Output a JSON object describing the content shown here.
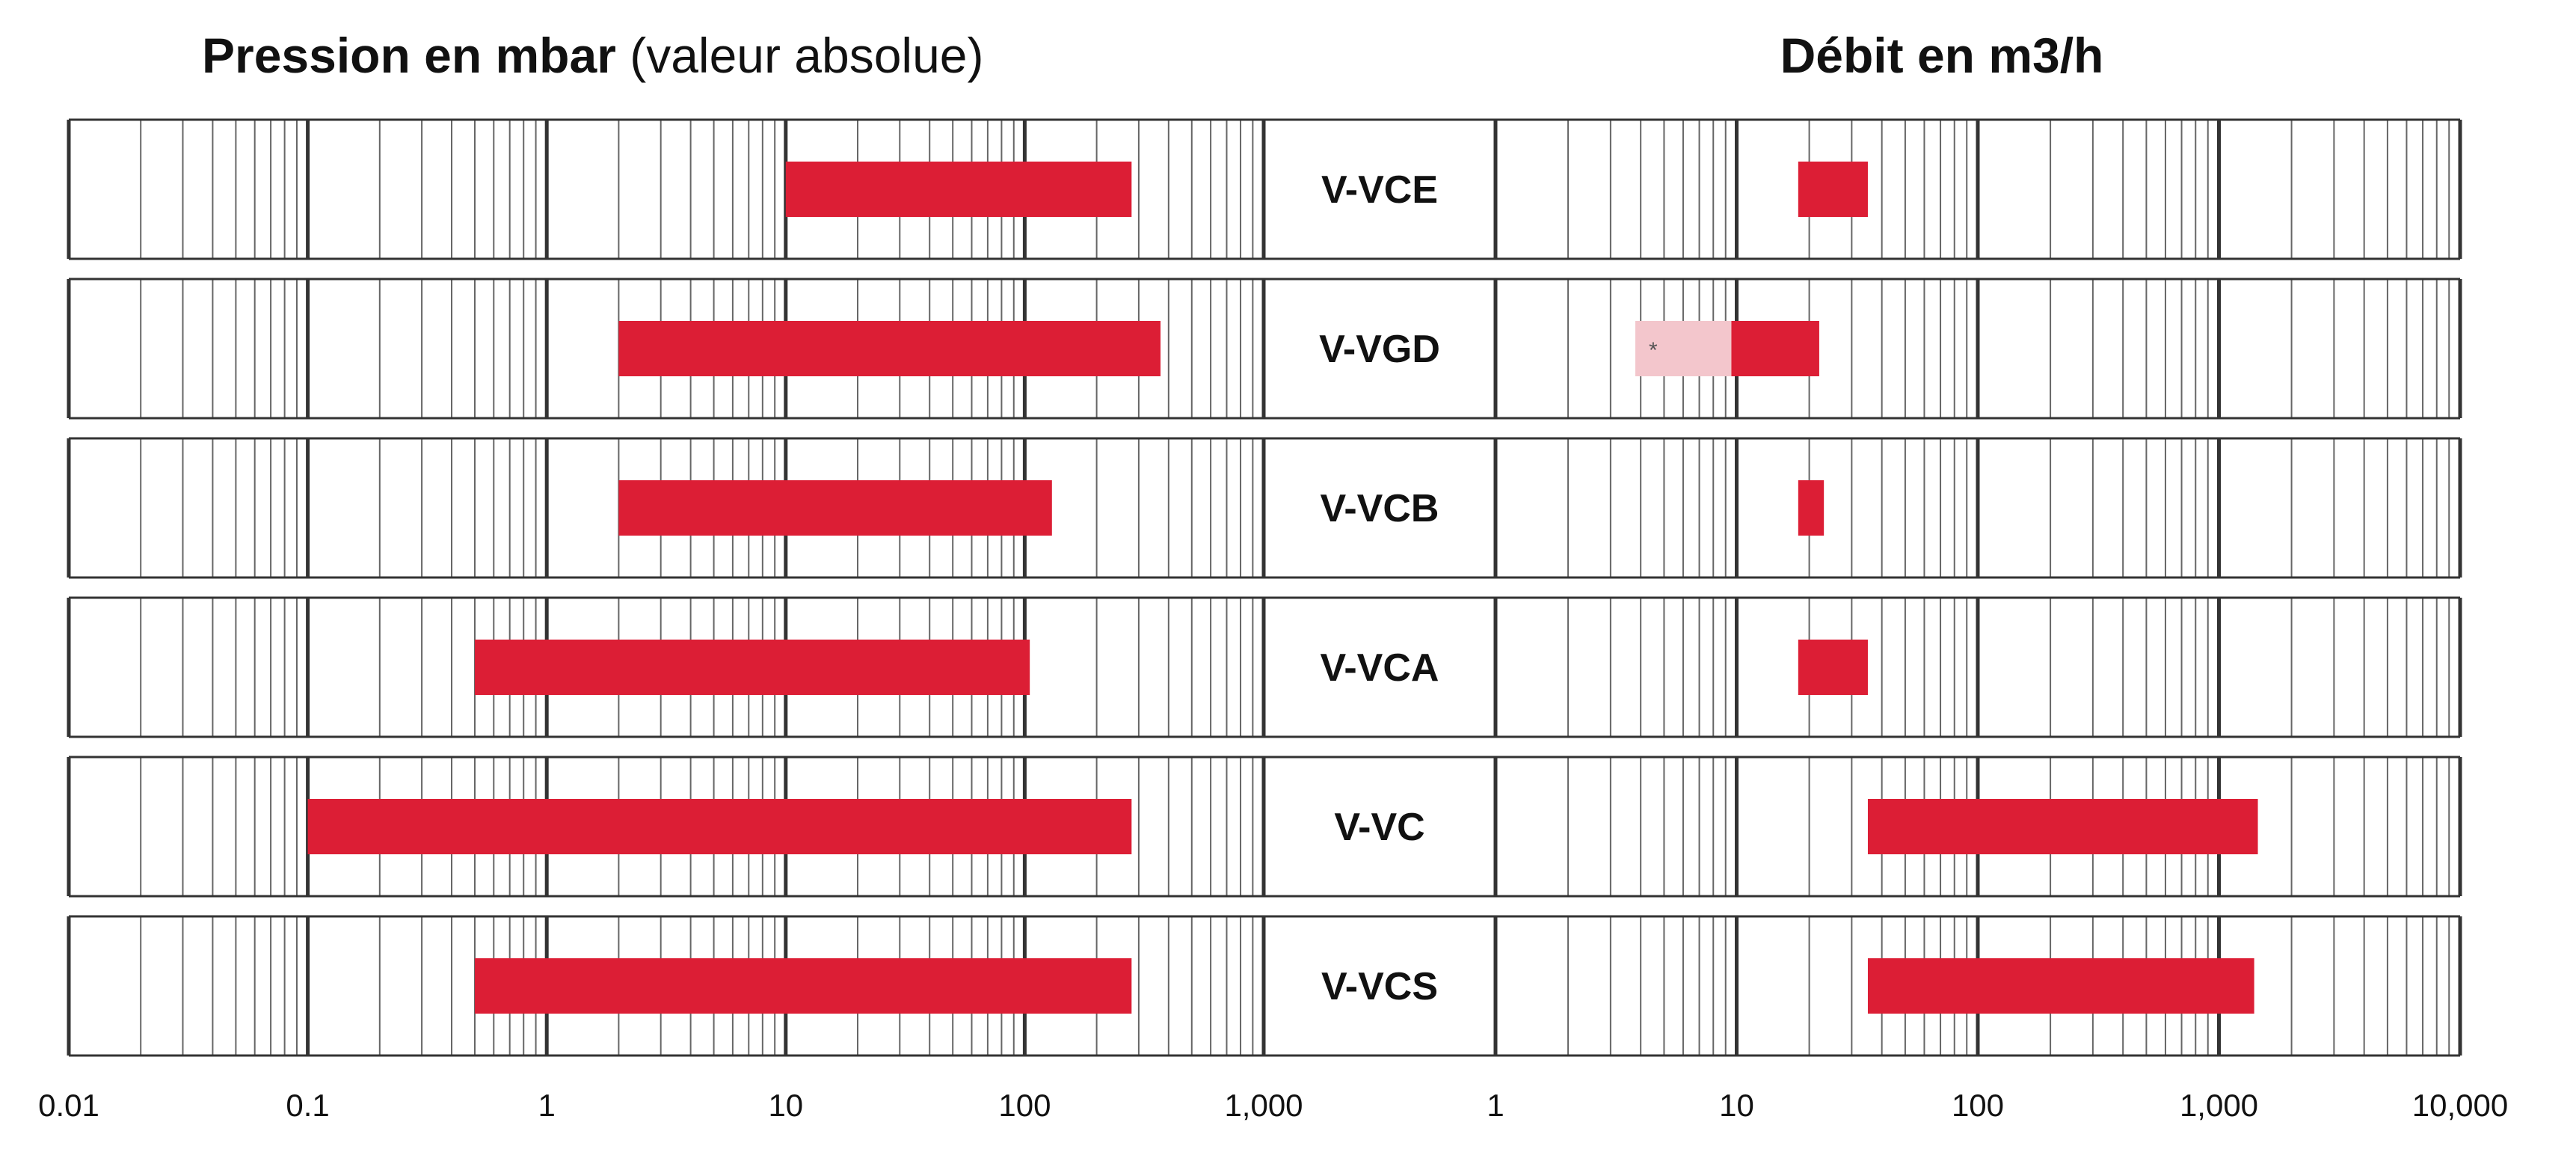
{
  "chart_data": {
    "type": "bar",
    "subtype": "horizontal-range-log",
    "colors": {
      "bar": "#dc1e35",
      "bar_light": "#f3c6cc",
      "grid": "#333333"
    },
    "pressure_title_bold": "Pression en mbar",
    "pressure_title_regular": "(valeur absolue)",
    "flow_title": "Débit en m3/h",
    "pressure_axis": {
      "scale": "log",
      "xlim": [
        0.01,
        1000
      ],
      "tick_labels": [
        "0.01",
        "0.1",
        "1",
        "10",
        "100",
        "1,000"
      ]
    },
    "flow_axis": {
      "scale": "log",
      "xlim": [
        1,
        10000
      ],
      "tick_labels": [
        "1",
        "10",
        "100",
        "1,000",
        "10,000"
      ]
    },
    "categories": [
      "V-VCE",
      "V-VGD",
      "V-VCB",
      "V-VCA",
      "V-VC",
      "V-VCS"
    ],
    "pressure_ranges": [
      [
        10,
        280
      ],
      [
        2,
        370
      ],
      [
        2,
        130
      ],
      [
        0.5,
        105
      ],
      [
        0.1,
        280
      ],
      [
        0.5,
        280
      ]
    ],
    "flow_ranges": [
      [
        18,
        35
      ],
      [
        9.5,
        22
      ],
      [
        18,
        23
      ],
      [
        18,
        35
      ],
      [
        35,
        1450
      ],
      [
        35,
        1400
      ]
    ],
    "flow_extension": {
      "category": "V-VGD",
      "range": [
        3.8,
        9.5
      ],
      "marker": "*"
    }
  }
}
